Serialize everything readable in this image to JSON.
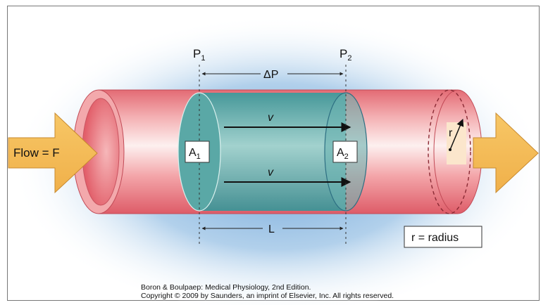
{
  "labels": {
    "flow": "Flow = F",
    "p1": "P",
    "p1_sub": "1",
    "p2": "P",
    "p2_sub": "2",
    "delta_p": "ΔP",
    "velocity_top": "v",
    "velocity_bottom": "v",
    "a1": "A",
    "a1_sub": "1",
    "a2": "A",
    "a2_sub": "2",
    "length": "L",
    "r": "r",
    "radius_box": "r = radius"
  },
  "caption": {
    "line1": "Boron & Boulpaep: Medical Physiology, 2nd Edition.",
    "line2": "Copyright © 2009 by Saunders, an imprint of Elsevier, Inc. All rights reserved."
  },
  "colors": {
    "tube_red": "#e8707a",
    "tube_highlight": "#fde4e4",
    "water_teal": "#4fa3a3",
    "glow_blue": "#7fb0dd",
    "arrow_orange": "#f5bf5a",
    "label_box_fill": "#fbe6cc"
  }
}
